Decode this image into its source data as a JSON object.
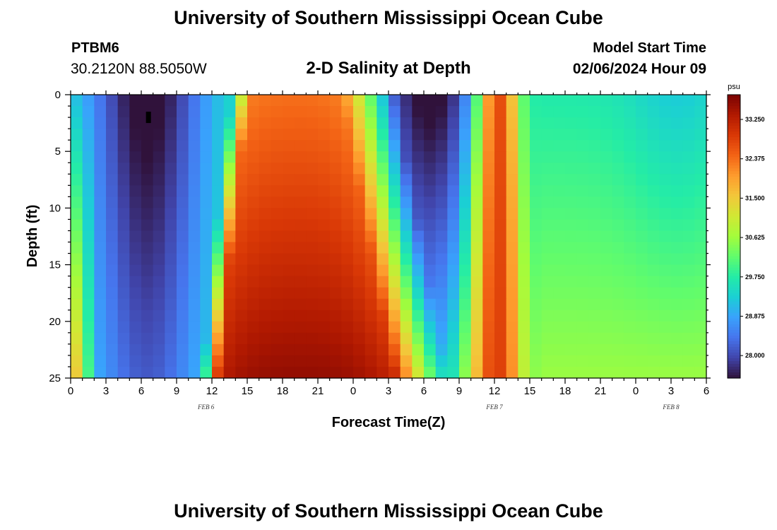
{
  "header": {
    "title": "University of Southern Mississippi Ocean Cube",
    "station": "PTBM6",
    "coords": "30.2120N  88.5050W",
    "subtitle": "2-D Salinity at Depth",
    "model_start_label": "Model Start Time",
    "model_start_value": "02/06/2024 Hour 09"
  },
  "footer": {
    "title": "University of Southern Mississippi Ocean Cube"
  },
  "chart_data": {
    "type": "heatmap",
    "title": "2-D Salinity at Depth",
    "xlabel": "Forecast Time(Z)",
    "ylabel": "Depth (ft)",
    "x_range_hours": [
      0,
      54
    ],
    "y_range": [
      0,
      25
    ],
    "x_ticks": [
      "0",
      "3",
      "6",
      "9",
      "12",
      "15",
      "18",
      "21",
      "0",
      "3",
      "6",
      "9",
      "12",
      "15",
      "18",
      "21",
      "0",
      "3",
      "6"
    ],
    "y_ticks": [
      "0",
      "5",
      "10",
      "15",
      "20",
      "25"
    ],
    "date_labels": [
      {
        "text": "FEB 6",
        "hour": 11.5
      },
      {
        "text": "FEB 7",
        "hour": 36
      },
      {
        "text": "FEB 8",
        "hour": 51
      }
    ],
    "colorbar": {
      "unit": "psu",
      "vmin": 27.5,
      "vmax": 33.8,
      "ticks": [
        "33.250",
        "32.375",
        "31.500",
        "30.625",
        "29.750",
        "28.875",
        "28.000"
      ]
    },
    "cells": {
      "nx": 54,
      "ny": 25
    },
    "colors": {
      "colormap": [
        "#30123b",
        "#4145ab",
        "#4675ed",
        "#39a2fc",
        "#1bcfd4",
        "#24eca6",
        "#61fc6c",
        "#a4fc3b",
        "#d1e834",
        "#f3c63a",
        "#fe9b2d",
        "#f36315",
        "#d93806",
        "#b11901",
        "#7a0403"
      ]
    }
  }
}
